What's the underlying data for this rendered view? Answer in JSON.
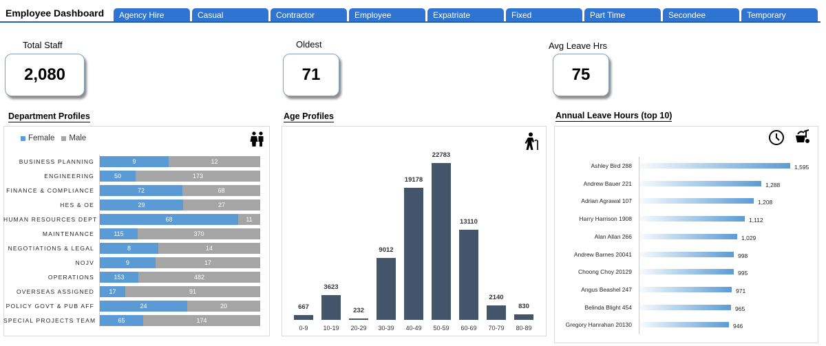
{
  "header": {
    "title": "Employee Dashboard",
    "tabs": [
      "Agency Hire",
      "Casual",
      "Contractor",
      "Employee",
      "Expatriate",
      "Fixed",
      "Part Time",
      "Secondee",
      "Temporary"
    ]
  },
  "kpis": {
    "total_staff": {
      "label": "Total Staff",
      "value": "2,080"
    },
    "oldest": {
      "label": "Oldest",
      "value": "71"
    },
    "avg_leave": {
      "label": "Avg Leave Hrs",
      "value": "75"
    }
  },
  "colors": {
    "female": "#5b9bd5",
    "male": "#a5a5a5",
    "age_bar": "#44546a",
    "tab": "#2f74d0",
    "leave_bar": "#5b9bd5"
  },
  "icons": {
    "department": "couple-icon",
    "age": "elderly-person-icon",
    "leave": [
      "clock-icon",
      "beach-bag-icon"
    ]
  },
  "department": {
    "title": "Department Profiles",
    "legend": [
      "Female",
      "Male"
    ]
  },
  "age": {
    "title": "Age Profiles"
  },
  "leave": {
    "title": "Annual Leave Hours (top 10)"
  },
  "chart_data": [
    {
      "type": "bar",
      "orientation": "horizontal-stacked",
      "title": "Department Profiles",
      "categories": [
        "BUSINESS PLANNING",
        "ENGINEERING",
        "FINANCE & COMPLIANCE",
        "HES & OE",
        "HUMAN RESOURCES DEPT",
        "MAINTENANCE",
        "NEGOTIATIONS & LEGAL",
        "NOJV",
        "OPERATIONS",
        "OVERSEAS ASSIGNED",
        "POLICY GOVT & PUB AFF",
        "SPECIAL PROJECTS TEAM"
      ],
      "series": [
        {
          "name": "Female",
          "values": [
            9,
            50,
            72,
            29,
            68,
            115,
            8,
            9,
            153,
            17,
            24,
            65
          ]
        },
        {
          "name": "Male",
          "values": [
            12,
            173,
            68,
            27,
            11,
            370,
            14,
            17,
            482,
            91,
            20,
            174
          ]
        }
      ],
      "legend": "top-left",
      "scale": "100% stacked"
    },
    {
      "type": "bar",
      "title": "Age Profiles",
      "categories": [
        "0-9",
        "10-19",
        "20-29",
        "30-39",
        "40-49",
        "50-59",
        "60-69",
        "70-79",
        "80-89"
      ],
      "values": [
        667,
        3623,
        232,
        9012,
        19178,
        22783,
        13110,
        2140,
        830
      ],
      "ylim": [
        0,
        25000
      ]
    },
    {
      "type": "bar",
      "orientation": "horizontal",
      "title": "Annual Leave Hours (top 10)",
      "categories": [
        "Ashley Bird 288",
        "Andrew Bauer 221",
        "Adrian Agrawal 107",
        "Harry Harrison 1908",
        "Alan Allan 266",
        "Andrew Barnes 20041",
        "Choong Choy 20129",
        "Angus Beashel 247",
        "Belinda Blight 454",
        "Gregory Hanrahan 20130"
      ],
      "values": [
        1595,
        1288,
        1208,
        1112,
        1029,
        998,
        995,
        971,
        965,
        946
      ],
      "value_labels": [
        "1,595",
        "1,288",
        "1,208",
        "1,112",
        "1,029",
        "998",
        "995",
        "971",
        "965",
        "946"
      ]
    }
  ]
}
